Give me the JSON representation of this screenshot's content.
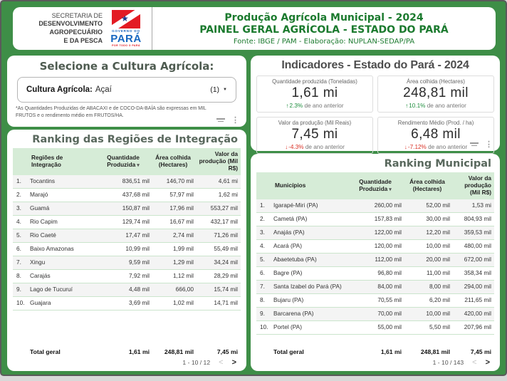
{
  "theme": {
    "frame_green": "#3E8E47",
    "dark_green_text": "#1B7A2E",
    "positive": "#1E8E3E",
    "negative": "#D93025",
    "table_header_bg": "#D6ECD7"
  },
  "header": {
    "org_lines": [
      "SECRETARIA DE",
      "DESENVOLVIMENTO",
      "AGROPECUÁRIO",
      "E DA PESCA"
    ],
    "logo": {
      "top_text": "GOVERNO DO",
      "name": "PARÁ",
      "tagline": "POR TODO O PARÁ"
    },
    "title_line1": "Produção Agrícola Municipal - 2024",
    "title_line2": "PAINEL GERAL AGRÍCOLA - ESTADO DO PARÁ",
    "source_line": "Fonte: IBGE / PAM - Elaboração: NUPLAN-SEDAP/PA"
  },
  "culture_selector": {
    "title": "Selecione a Cultura Agrícola:",
    "dropdown_label": "Cultura Agrícola:",
    "dropdown_value": "Açaí",
    "dropdown_count": "(1)",
    "footnote": "*As Quantidades Produzidas de ABACAXI e de COCO-DA-BAÍA são expressas em MIL FRUTOS e o rendimento médio em FRUTOS/HA."
  },
  "indicators": {
    "title": "Indicadores - Estado do Pará - 2024",
    "cards": [
      {
        "label": "Quantidade produzida (Toneladas)",
        "value": "1,61 mi",
        "trend": "up",
        "pct": "2.3%",
        "suffix": "de ano anterior"
      },
      {
        "label": "Área colhida (Hectares)",
        "value": "248,81 mil",
        "trend": "up",
        "pct": "10.1%",
        "suffix": "de ano anterior"
      },
      {
        "label": "Valor da produção (Mil Reais)",
        "value": "7,45 mi",
        "trend": "down",
        "pct": "-4.3%",
        "suffix": "de ano anterior"
      },
      {
        "label": "Rendimento Médio (Prod. / ha)",
        "value": "6,48 mil",
        "trend": "down",
        "pct": "-7.12%",
        "suffix": "de ano anterior"
      }
    ]
  },
  "region_ranking": {
    "title": "Ranking das Regiões de Integração",
    "columns": [
      "Regiões de Integração",
      "Quantidade Produzida",
      "Área colhida (Hectares)",
      "Valor da produção (Mil R$)"
    ],
    "rows": [
      {
        "n": "1.",
        "name": "Tocantins",
        "qty": "836,51 mil",
        "area": "146,70 mil",
        "value": "4,61 mi"
      },
      {
        "n": "2.",
        "name": "Marajó",
        "qty": "437,68 mil",
        "area": "57,97 mil",
        "value": "1,62 mi"
      },
      {
        "n": "3.",
        "name": "Guamá",
        "qty": "150,87 mil",
        "area": "17,96 mil",
        "value": "553,27 mil"
      },
      {
        "n": "4.",
        "name": "Rio Capim",
        "qty": "129,74 mil",
        "area": "16,67 mil",
        "value": "432,17 mil"
      },
      {
        "n": "5.",
        "name": "Rio Caeté",
        "qty": "17,47 mil",
        "area": "2,74 mil",
        "value": "71,26 mil"
      },
      {
        "n": "6.",
        "name": "Baixo Amazonas",
        "qty": "10,99 mil",
        "area": "1,99 mil",
        "value": "55,49 mil"
      },
      {
        "n": "7.",
        "name": "Xingu",
        "qty": "9,59 mil",
        "area": "1,29 mil",
        "value": "34,24 mil"
      },
      {
        "n": "8.",
        "name": "Carajás",
        "qty": "7,92 mil",
        "area": "1,12 mil",
        "value": "28,29 mil"
      },
      {
        "n": "9.",
        "name": "Lago de Tucuruí",
        "qty": "4,48 mil",
        "area": "666,00",
        "value": "15,74 mil"
      },
      {
        "n": "10.",
        "name": "Guajara",
        "qty": "3,69 mil",
        "area": "1,02 mil",
        "value": "14,71 mil"
      }
    ],
    "total_label": "Total geral",
    "total": {
      "qty": "1,61 mi",
      "area": "248,81 mil",
      "value": "7,45 mi"
    },
    "pagination": "1 - 10 / 12"
  },
  "municipal_ranking": {
    "title": "Ranking Municipal",
    "columns": [
      "Municípios",
      "Quantidade Produzida",
      "Área colhida (Hectares)",
      "Valor da produção (Mil R$)"
    ],
    "rows": [
      {
        "n": "1.",
        "name": "Igarapé-Miri (PA)",
        "qty": "260,00 mil",
        "area": "52,00 mil",
        "value": "1,53 mi"
      },
      {
        "n": "2.",
        "name": "Cametá (PA)",
        "qty": "157,83 mil",
        "area": "30,00 mil",
        "value": "804,93 mil"
      },
      {
        "n": "3.",
        "name": "Anajás (PA)",
        "qty": "122,00 mil",
        "area": "12,20 mil",
        "value": "359,53 mil"
      },
      {
        "n": "4.",
        "name": "Acará (PA)",
        "qty": "120,00 mil",
        "area": "10,00 mil",
        "value": "480,00 mil"
      },
      {
        "n": "5.",
        "name": "Abaetetuba (PA)",
        "qty": "112,00 mil",
        "area": "20,00 mil",
        "value": "672,00 mil"
      },
      {
        "n": "6.",
        "name": "Bagre (PA)",
        "qty": "96,80 mil",
        "area": "11,00 mil",
        "value": "358,34 mil"
      },
      {
        "n": "7.",
        "name": "Santa Izabel do Pará (PA)",
        "qty": "84,00 mil",
        "area": "8,00 mil",
        "value": "294,00 mil"
      },
      {
        "n": "8.",
        "name": "Bujaru (PA)",
        "qty": "70,55 mil",
        "area": "6,20 mil",
        "value": "211,65 mil"
      },
      {
        "n": "9.",
        "name": "Barcarena (PA)",
        "qty": "70,00 mil",
        "area": "10,00 mil",
        "value": "420,00 mil"
      },
      {
        "n": "10.",
        "name": "Portel (PA)",
        "qty": "55,00 mil",
        "area": "5,50 mil",
        "value": "207,96 mil"
      }
    ],
    "total_label": "Total geral",
    "total": {
      "qty": "1,61 mi",
      "area": "248,81 mil",
      "value": "7,45 mi"
    },
    "pagination": "1 - 10 / 143"
  }
}
